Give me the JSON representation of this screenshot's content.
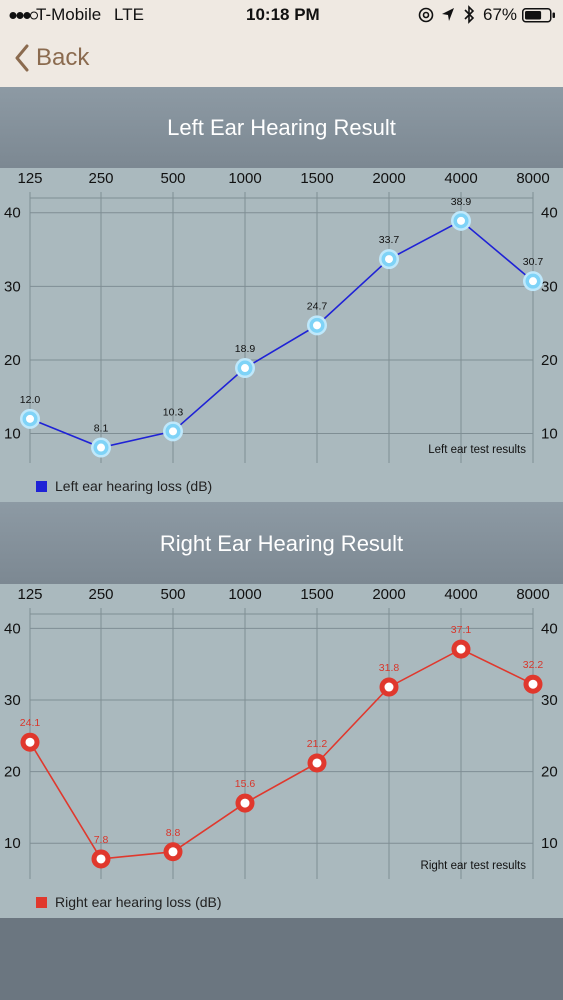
{
  "status_bar": {
    "carrier": "T-Mobile",
    "network": "LTE",
    "time": "10:18 PM",
    "battery": "67%",
    "battery_level": 0.67,
    "icons": [
      "signal-dots-icon",
      "at-icon",
      "location-arrow-icon",
      "bluetooth-icon",
      "battery-icon"
    ]
  },
  "nav": {
    "back_label": "Back",
    "back_icon": "chevron-left-icon",
    "accent": "#8b6b4f"
  },
  "left": {
    "title": "Left Ear Hearing Result",
    "legend": "Left ear hearing loss (dB)",
    "color": "#1f22d6"
  },
  "right": {
    "title": "Right Ear Hearing Result",
    "legend": "Right ear hearing loss (dB)",
    "color": "#e0382d"
  },
  "chart_data": [
    {
      "type": "line",
      "title": "Left Ear Hearing Result",
      "categories": [
        "125",
        "250",
        "500",
        "1000",
        "1500",
        "2000",
        "4000",
        "8000"
      ],
      "y_ticks": [
        10,
        20,
        30,
        40
      ],
      "ylim": [
        6,
        42
      ],
      "annotation": "Left ear test results",
      "series": [
        {
          "name": "Left ear hearing loss (dB)",
          "values": [
            12.0,
            8.1,
            10.3,
            18.9,
            24.7,
            33.7,
            38.9,
            30.7
          ],
          "labels": [
            "12.0",
            "8.1",
            "10.3",
            "18.9",
            "24.7",
            "33.7",
            "38.9",
            "30.7"
          ]
        }
      ],
      "grid": true,
      "legend": "bottom-left"
    },
    {
      "type": "line",
      "title": "Right Ear Hearing Result",
      "categories": [
        "125",
        "250",
        "500",
        "1000",
        "1500",
        "2000",
        "4000",
        "8000"
      ],
      "y_ticks": [
        10,
        20,
        30,
        40
      ],
      "ylim": [
        5,
        42
      ],
      "annotation": "Right ear test results",
      "series": [
        {
          "name": "Right ear hearing loss (dB)",
          "values": [
            24.1,
            7.8,
            8.8,
            15.6,
            21.2,
            31.8,
            37.1,
            32.2
          ],
          "labels": [
            "24.1",
            "7.8",
            "8.8",
            "15.6",
            "21.2",
            "31.8",
            "37.1",
            "32.2"
          ]
        }
      ],
      "grid": true,
      "legend": "bottom-left"
    }
  ]
}
